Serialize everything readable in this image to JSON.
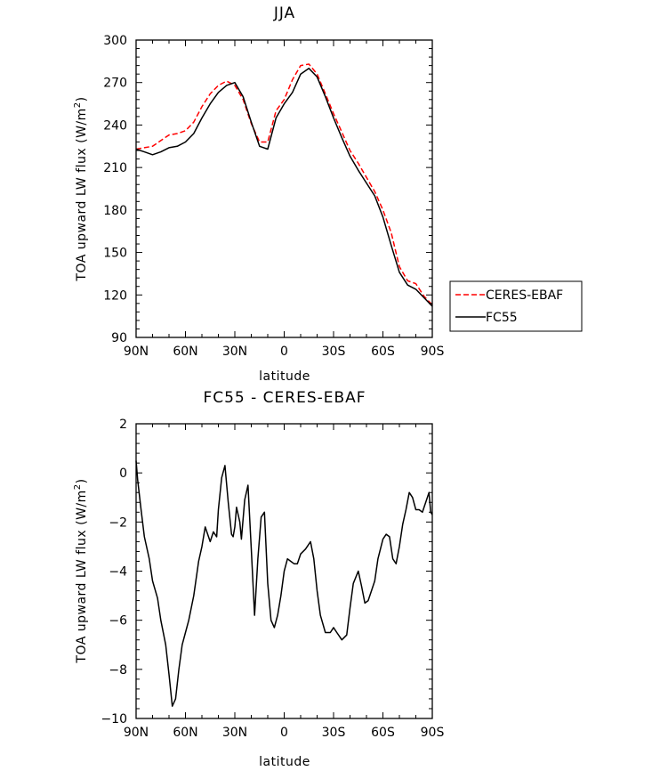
{
  "chart_data": [
    {
      "type": "line",
      "title": "JJA",
      "xlabel": "latitude",
      "ylabel_prefix": "TOA upward LW flux (W/m",
      "ylabel_sup": "2",
      "ylabel_suffix": ")",
      "xlim": [
        90,
        -90
      ],
      "ylim": [
        90,
        300
      ],
      "xticks": [
        90,
        60,
        30,
        0,
        -30,
        -60,
        -90
      ],
      "xticklabels": [
        "90N",
        "60N",
        "30N",
        "0",
        "30S",
        "60S",
        "90S"
      ],
      "yticks": [
        90,
        120,
        150,
        180,
        210,
        240,
        270,
        300
      ],
      "yticklabels": [
        "90",
        "120",
        "150",
        "180",
        "210",
        "240",
        "270",
        "300"
      ],
      "grid": false,
      "legend": {
        "placement": "outside-right",
        "entries": [
          "CERES-EBAF",
          "FC55"
        ]
      },
      "series": [
        {
          "name": "CERES-EBAF",
          "color": "#ff0000",
          "style": "dashed",
          "x": [
            90,
            85,
            80,
            75,
            70,
            65,
            60,
            55,
            50,
            45,
            40,
            35,
            30,
            25,
            20,
            15,
            10,
            5,
            0,
            -5,
            -10,
            -15,
            -20,
            -25,
            -30,
            -35,
            -40,
            -45,
            -50,
            -55,
            -60,
            -65,
            -70,
            -75,
            -80,
            -85,
            -90
          ],
          "y": [
            223,
            224,
            225,
            229,
            233,
            234,
            236,
            242,
            253,
            262,
            268,
            271,
            268,
            258,
            241,
            228,
            228,
            250,
            258,
            272,
            282,
            283,
            276,
            262,
            248,
            235,
            222,
            213,
            203,
            193,
            180,
            164,
            140,
            130,
            128,
            119,
            113
          ]
        },
        {
          "name": "FC55",
          "color": "#000000",
          "style": "solid",
          "x": [
            90,
            85,
            80,
            75,
            70,
            65,
            60,
            55,
            50,
            45,
            40,
            35,
            30,
            25,
            20,
            15,
            10,
            5,
            0,
            -5,
            -10,
            -15,
            -20,
            -25,
            -30,
            -35,
            -40,
            -45,
            -50,
            -55,
            -60,
            -65,
            -70,
            -75,
            -80,
            -85,
            -90
          ],
          "y": [
            223,
            221,
            219,
            221,
            224,
            225,
            228,
            234,
            245,
            255,
            263,
            268,
            270,
            260,
            242,
            225,
            223,
            245,
            255,
            263,
            276,
            280,
            274,
            260,
            245,
            231,
            218,
            208,
            199,
            190,
            175,
            155,
            136,
            127,
            124,
            118,
            112
          ]
        }
      ]
    },
    {
      "type": "line",
      "title": "FC55 - CERES-EBAF",
      "xlabel": "latitude",
      "ylabel_prefix": "TOA upward LW flux (W/m",
      "ylabel_sup": "2",
      "ylabel_suffix": ")",
      "xlim": [
        90,
        -90
      ],
      "ylim": [
        -10,
        2
      ],
      "xticks": [
        90,
        60,
        30,
        0,
        -30,
        -60,
        -90
      ],
      "xticklabels": [
        "90N",
        "60N",
        "30N",
        "0",
        "30S",
        "60S",
        "90S"
      ],
      "yticks": [
        -10,
        -8,
        -6,
        -4,
        -2,
        0,
        2
      ],
      "yticklabels": [
        "−10",
        "−8",
        "−6",
        "−4",
        "−2",
        "0",
        "2"
      ],
      "grid": false,
      "series": [
        {
          "name": "FC55 - CERES-EBAF",
          "color": "#000000",
          "style": "solid",
          "x": [
            90,
            89,
            87,
            85,
            82,
            80,
            77,
            75,
            72,
            70,
            68,
            66,
            64,
            62,
            60,
            58,
            55,
            52,
            50,
            48,
            45,
            43,
            41,
            40,
            38,
            36,
            34,
            32,
            31,
            30,
            29,
            27,
            26,
            24,
            22,
            20,
            18,
            16,
            14,
            12,
            10,
            8,
            6,
            4,
            2,
            0,
            -2,
            -4,
            -6,
            -8,
            -10,
            -13,
            -16,
            -18,
            -20,
            -22,
            -25,
            -28,
            -30,
            -32,
            -35,
            -38,
            -40,
            -42,
            -45,
            -47,
            -49,
            -51,
            -53,
            -55,
            -57,
            -60,
            -62,
            -64,
            -66,
            -68,
            -70,
            -72,
            -74,
            -76,
            -78,
            -80,
            -82,
            -84,
            -86,
            -88,
            -89,
            -90
          ],
          "y": [
            0.5,
            -0.3,
            -1.5,
            -2.6,
            -3.5,
            -4.4,
            -5.1,
            -6.0,
            -7.0,
            -8.2,
            -9.5,
            -9.2,
            -8.0,
            -7.0,
            -6.5,
            -6.0,
            -5.0,
            -3.6,
            -3.0,
            -2.2,
            -2.8,
            -2.4,
            -2.6,
            -1.5,
            -0.2,
            0.3,
            -1.2,
            -2.5,
            -2.6,
            -2.2,
            -1.4,
            -2.0,
            -2.7,
            -1.1,
            -0.5,
            -3.1,
            -5.8,
            -3.5,
            -1.8,
            -1.6,
            -4.5,
            -6.0,
            -6.3,
            -5.8,
            -5.0,
            -4.0,
            -3.5,
            -3.6,
            -3.7,
            -3.7,
            -3.3,
            -3.1,
            -2.8,
            -3.5,
            -4.8,
            -5.8,
            -6.5,
            -6.5,
            -6.3,
            -6.5,
            -6.8,
            -6.6,
            -5.5,
            -4.5,
            -4.0,
            -4.6,
            -5.3,
            -5.2,
            -4.8,
            -4.4,
            -3.5,
            -2.7,
            -2.5,
            -2.6,
            -3.5,
            -3.7,
            -3.0,
            -2.1,
            -1.5,
            -0.8,
            -1.0,
            -1.5,
            -1.5,
            -1.6,
            -1.2,
            -0.8,
            -1.6,
            -1.7
          ]
        }
      ]
    }
  ]
}
